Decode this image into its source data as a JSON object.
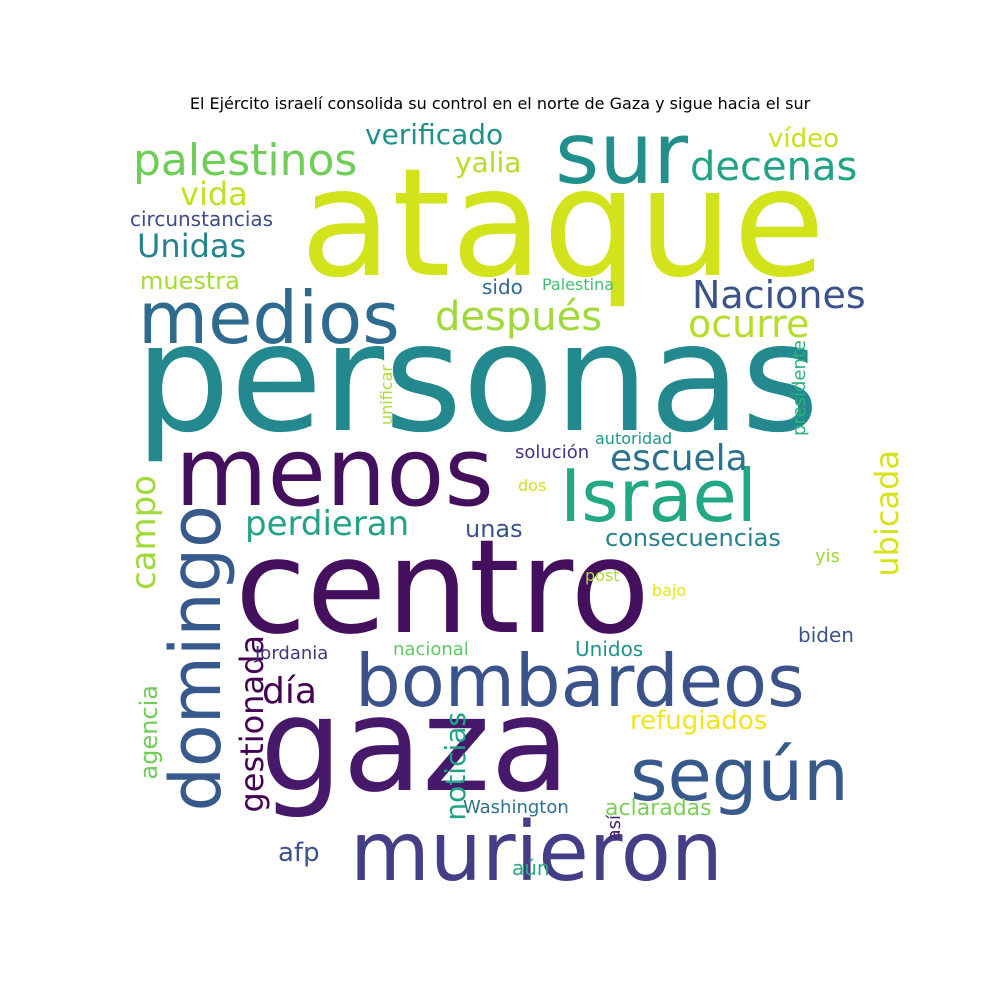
{
  "title": "El Ejército israelí consolida su control en el norte de Gaza y sigue hacia el sur",
  "words": [
    {
      "text": "ataque",
      "color": "#d2e21b"
    },
    {
      "text": "personas",
      "color": "#23898e"
    },
    {
      "text": "centro",
      "color": "#440f5d"
    },
    {
      "text": "gaza",
      "color": "#46196b"
    },
    {
      "text": "menos",
      "color": "#440f5d"
    },
    {
      "text": "sur",
      "color": "#21908d"
    },
    {
      "text": "medios",
      "color": "#2f6b8e"
    },
    {
      "text": "Israel",
      "color": "#22a884"
    },
    {
      "text": "bombardeos",
      "color": "#3b528b"
    },
    {
      "text": "murieron",
      "color": "#433e85"
    },
    {
      "text": "según",
      "color": "#38598c"
    },
    {
      "text": "domingo",
      "color": "#38598c"
    },
    {
      "text": "palestinos",
      "color": "#6ece58"
    },
    {
      "text": "decenas",
      "color": "#20a386"
    },
    {
      "text": "después",
      "color": "#a0da39"
    },
    {
      "text": "Naciones",
      "color": "#3b528b"
    },
    {
      "text": "ocurre",
      "color": "#b5de2b"
    },
    {
      "text": "escuela",
      "color": "#2c728e"
    },
    {
      "text": "perdieran",
      "color": "#20a386"
    },
    {
      "text": "ubicada",
      "color": "#d8e219"
    },
    {
      "text": "campo",
      "color": "#a0da39"
    },
    {
      "text": "gestionada",
      "color": "#440154"
    },
    {
      "text": "día",
      "color": "#440154"
    },
    {
      "text": "verificado",
      "color": "#21918c"
    },
    {
      "text": "vida",
      "color": "#c2df23"
    },
    {
      "text": "Unidas",
      "color": "#25838e"
    },
    {
      "text": "yalia",
      "color": "#b5de2b"
    },
    {
      "text": "vídeo",
      "color": "#c8e020"
    },
    {
      "text": "circunstancias",
      "color": "#3e4c8a"
    },
    {
      "text": "muestra",
      "color": "#a5db36"
    },
    {
      "text": "sido",
      "color": "#31688e"
    },
    {
      "text": "Palestina",
      "color": "#44bf70"
    },
    {
      "text": "unificar",
      "color": "#addc30"
    },
    {
      "text": "presidente",
      "color": "#2db27d"
    },
    {
      "text": "autoridad",
      "color": "#1f968b"
    },
    {
      "text": "solución",
      "color": "#46337f"
    },
    {
      "text": "dos",
      "color": "#d0e11c"
    },
    {
      "text": "unas",
      "color": "#3b528b"
    },
    {
      "text": "consecuencias",
      "color": "#26828e"
    },
    {
      "text": "yis",
      "color": "#9bd93c"
    },
    {
      "text": "post",
      "color": "#addc30"
    },
    {
      "text": "bajo",
      "color": "#e5e419"
    },
    {
      "text": "biden",
      "color": "#3b528b"
    },
    {
      "text": "Unidos",
      "color": "#21918c"
    },
    {
      "text": "nacional",
      "color": "#5ec962"
    },
    {
      "text": "Jordania",
      "color": "#46337f"
    },
    {
      "text": "refugiados",
      "color": "#f1e51d"
    },
    {
      "text": "agencia",
      "color": "#6ece58"
    },
    {
      "text": "noticias",
      "color": "#20a386"
    },
    {
      "text": "afp",
      "color": "#3b528b"
    },
    {
      "text": "Washington",
      "color": "#2c728e"
    },
    {
      "text": "aclaradas",
      "color": "#7ad151"
    },
    {
      "text": "así",
      "color": "#482173"
    },
    {
      "text": "aún",
      "color": "#25ab82"
    }
  ]
}
